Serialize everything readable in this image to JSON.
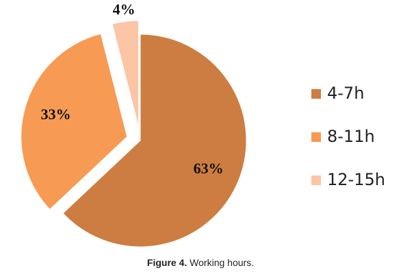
{
  "chart_data": {
    "type": "pie",
    "categories": [
      "4-7h",
      "8-11h",
      "12-15h"
    ],
    "values": [
      63,
      33,
      4
    ],
    "value_labels": [
      "63%",
      "33%",
      "4%"
    ],
    "colors": [
      "#cd7d41",
      "#f79a53",
      "#fbc5a6"
    ],
    "legend": "right",
    "caption_label": "Figure 4.",
    "caption": "Working hours."
  }
}
